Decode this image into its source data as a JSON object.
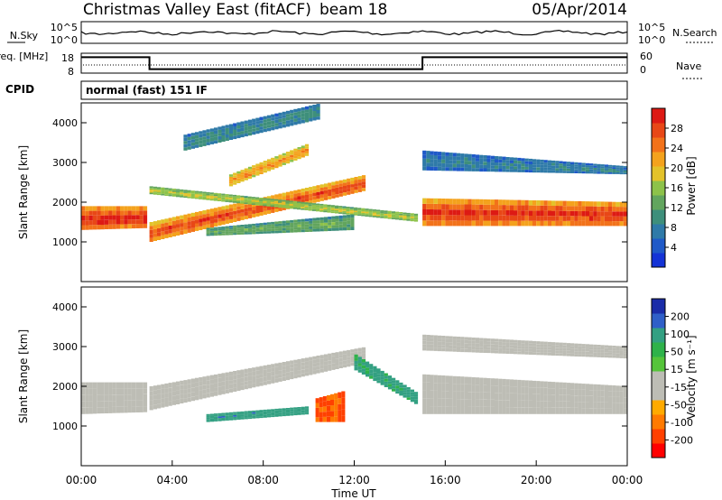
{
  "title": {
    "station": "Christmas Valley East (fitACF)",
    "beam": "beam 18",
    "date": "05/Apr/2014"
  },
  "colors": {
    "power_scale": [
      "#1433d6",
      "#1f59c8",
      "#2f7aa8",
      "#3e8f7b",
      "#62a55e",
      "#8dc24a",
      "#e3c22a",
      "#f4a21d",
      "#f2721a",
      "#e84717",
      "#dd1a14"
    ],
    "velocity_scale": [
      "#ff0000",
      "#ff4000",
      "#ff7a00",
      "#ffaa00",
      "#bdbdb5",
      "#bdbdb5",
      "#55c43a",
      "#2fb24a",
      "#33a082",
      "#2f5fc8",
      "#1a2ca8"
    ],
    "ground_scatter": "#bdbdb5"
  },
  "chart_data": [
    {
      "id": "noise",
      "type": "line",
      "left_label": "N.Sky",
      "right_label": "N.Search",
      "left_ticks": [
        "10^5",
        "10^0"
      ],
      "right_ticks": [
        "10^5",
        "10^0"
      ]
    },
    {
      "id": "freq",
      "type": "line",
      "left_label": "Freq. [MHz]",
      "right_label": "Nave",
      "left_ticks": [
        "18",
        "8"
      ],
      "right_ticks": [
        "60",
        "0"
      ],
      "freq_steps": [
        {
          "start_h": 0,
          "end_h": 3,
          "value": 16
        },
        {
          "start_h": 3,
          "end_h": 15,
          "value": 10
        },
        {
          "start_h": 15,
          "end_h": 24,
          "value": 16
        }
      ]
    },
    {
      "id": "cpid",
      "type": "table",
      "label": "CPID",
      "value": "normal (fast) 151 IF"
    },
    {
      "id": "power",
      "type": "heatmap",
      "ylabel": "Slant Range [km]",
      "y_ticks": [
        1000,
        2000,
        3000,
        4000
      ],
      "ylim": [
        0,
        4500
      ],
      "xlim_hours": [
        0,
        24
      ],
      "colorbar_label": "Power [dB]",
      "colorbar_ticks": [
        "28",
        "24",
        "20",
        "16",
        "12",
        "8",
        "4"
      ],
      "bands": [
        {
          "start_h": 0.0,
          "end_h": 2.9,
          "lower_km": [
            1300,
            1350
          ],
          "upper_km": [
            1900,
            1900
          ],
          "level": 0.92
        },
        {
          "start_h": 3.0,
          "end_h": 12.5,
          "lower_km": [
            1000,
            2300
          ],
          "upper_km": [
            1500,
            2700
          ],
          "level": 0.85
        },
        {
          "start_h": 3.0,
          "end_h": 14.8,
          "lower_km": [
            2200,
            1500
          ],
          "upper_km": [
            2400,
            1700
          ],
          "level": 0.55
        },
        {
          "start_h": 6.5,
          "end_h": 10.0,
          "lower_km": [
            2400,
            3200
          ],
          "upper_km": [
            2700,
            3500
          ],
          "level": 0.72
        },
        {
          "start_h": 5.5,
          "end_h": 12.0,
          "lower_km": [
            1150,
            1300
          ],
          "upper_km": [
            1350,
            1700
          ],
          "level": 0.42
        },
        {
          "start_h": 15.0,
          "end_h": 24.0,
          "lower_km": [
            1400,
            1400
          ],
          "upper_km": [
            2100,
            2000
          ],
          "level": 0.9
        },
        {
          "start_h": 15.0,
          "end_h": 24.0,
          "lower_km": [
            2800,
            2700
          ],
          "upper_km": [
            3300,
            2900
          ],
          "level": 0.25
        },
        {
          "start_h": 4.5,
          "end_h": 10.5,
          "lower_km": [
            3300,
            4100
          ],
          "upper_km": [
            3700,
            4500
          ],
          "level": 0.3
        }
      ]
    },
    {
      "id": "velocity",
      "type": "heatmap",
      "xlabel": "Time UT",
      "ylabel": "Slant Range [km]",
      "y_ticks": [
        1000,
        2000,
        3000,
        4000
      ],
      "ylim": [
        0,
        4500
      ],
      "xlim_hours": [
        0,
        24
      ],
      "x_ticks": [
        "00:00",
        "04:00",
        "08:00",
        "12:00",
        "16:00",
        "20:00",
        "00:00"
      ],
      "colorbar_label": "Velocity [m s⁻¹]",
      "colorbar_ticks": [
        "200",
        "100",
        "50",
        "15",
        "-15",
        "-50",
        "-100",
        "-200"
      ],
      "bands": [
        {
          "start_h": 0.0,
          "end_h": 2.9,
          "lower_km": [
            1300,
            1350
          ],
          "upper_km": [
            2100,
            2100
          ],
          "level": 0.5
        },
        {
          "start_h": 3.0,
          "end_h": 12.5,
          "lower_km": [
            1400,
            2600
          ],
          "upper_km": [
            2000,
            3000
          ],
          "level": 0.5
        },
        {
          "start_h": 15.0,
          "end_h": 24.0,
          "lower_km": [
            1300,
            1300
          ],
          "upper_km": [
            2300,
            2000
          ],
          "level": 0.5
        },
        {
          "start_h": 15.0,
          "end_h": 24.0,
          "lower_km": [
            2900,
            2700
          ],
          "upper_km": [
            3300,
            3000
          ],
          "level": 0.5
        },
        {
          "start_h": 5.5,
          "end_h": 10.0,
          "lower_km": [
            1100,
            1300
          ],
          "upper_km": [
            1300,
            1500
          ],
          "level": 0.78
        },
        {
          "start_h": 10.3,
          "end_h": 11.6,
          "lower_km": [
            1100,
            1100
          ],
          "upper_km": [
            1700,
            1900
          ],
          "level": 0.18
        },
        {
          "start_h": 12.0,
          "end_h": 14.8,
          "lower_km": [
            2400,
            1500
          ],
          "upper_km": [
            2800,
            1800
          ],
          "level": 0.75
        }
      ]
    }
  ]
}
